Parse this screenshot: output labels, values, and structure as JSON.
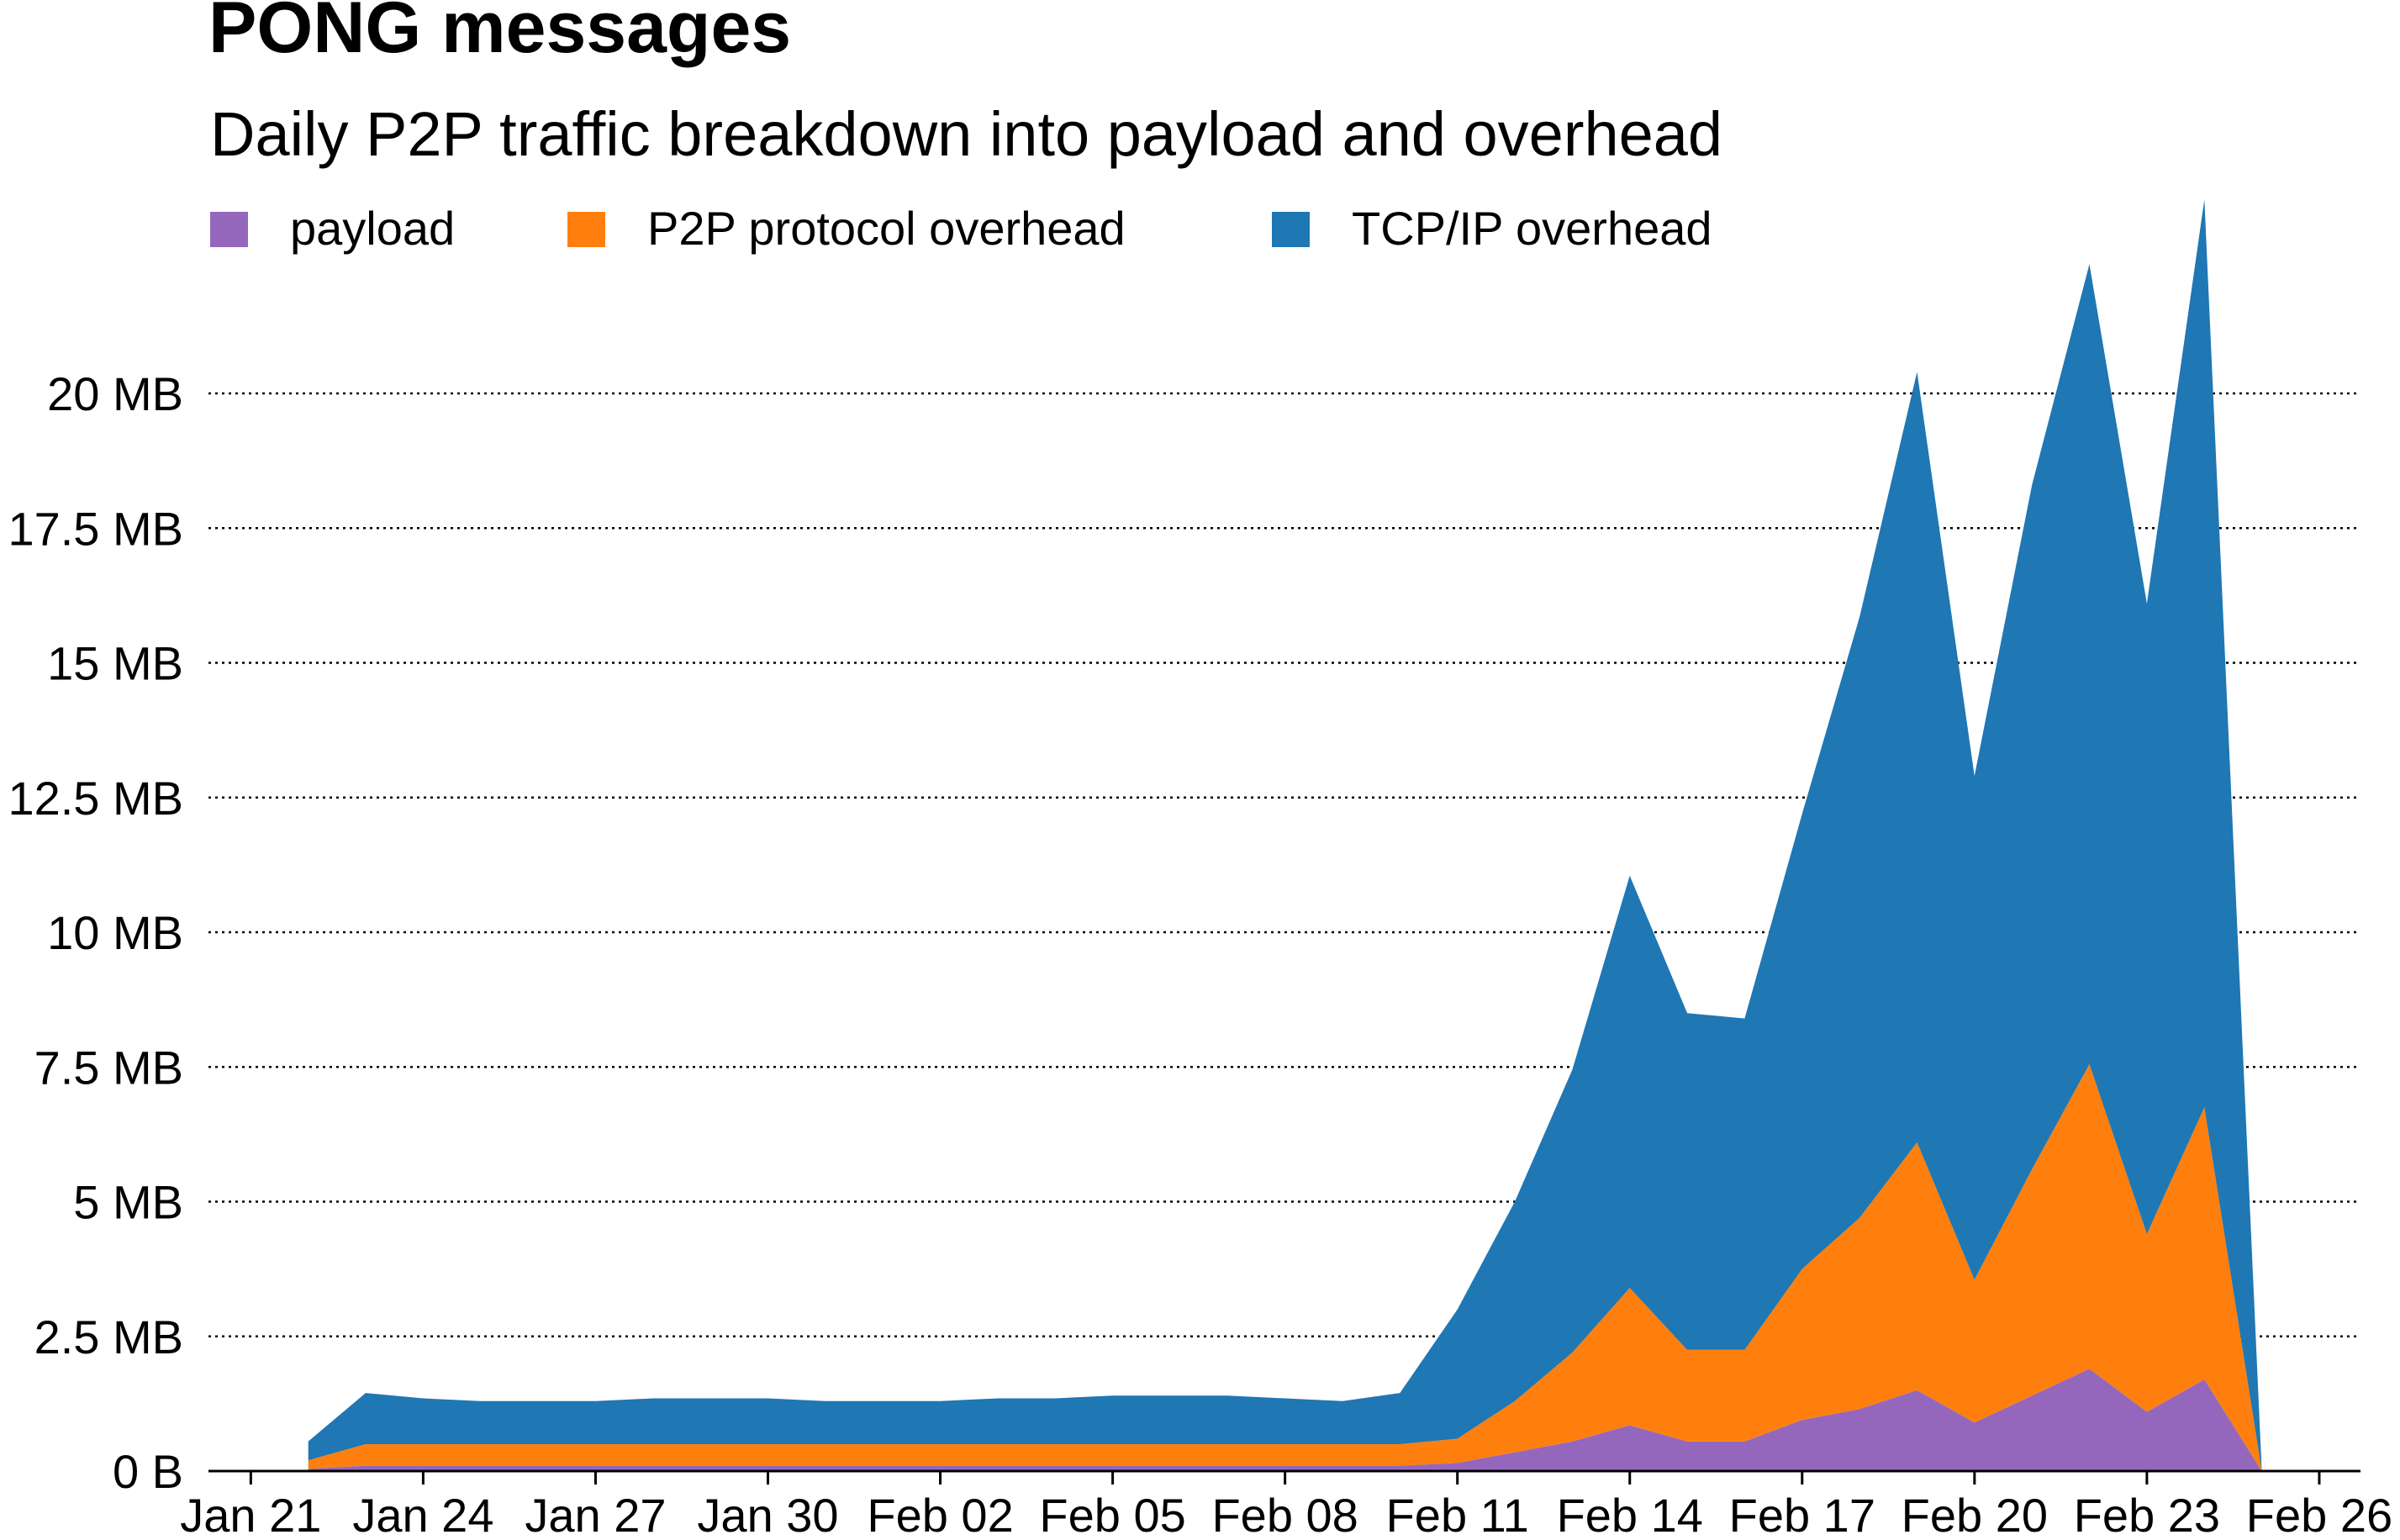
{
  "chart_data": {
    "type": "area",
    "stacked": true,
    "title": "PONG messages",
    "subtitle": "Daily P2P traffic breakdown into payload and overhead",
    "x": [
      "Jan 22",
      "Jan 23",
      "Jan 24",
      "Jan 25",
      "Jan 26",
      "Jan 27",
      "Jan 28",
      "Jan 29",
      "Jan 30",
      "Jan 31",
      "Feb 01",
      "Feb 02",
      "Feb 03",
      "Feb 04",
      "Feb 05",
      "Feb 06",
      "Feb 07",
      "Feb 08",
      "Feb 09",
      "Feb 10",
      "Feb 11",
      "Feb 12",
      "Feb 13",
      "Feb 14",
      "Feb 15",
      "Feb 16",
      "Feb 17",
      "Feb 18",
      "Feb 19",
      "Feb 20",
      "Feb 21",
      "Feb 22",
      "Feb 23",
      "Feb 24",
      "Feb 25"
    ],
    "series": [
      {
        "name": "payload",
        "color": "#9467bd",
        "values": [
          0.04,
          0.1,
          0.1,
          0.1,
          0.1,
          0.1,
          0.1,
          0.1,
          0.1,
          0.1,
          0.1,
          0.1,
          0.1,
          0.1,
          0.1,
          0.1,
          0.1,
          0.1,
          0.1,
          0.1,
          0.15,
          0.35,
          0.55,
          0.85,
          0.55,
          0.55,
          0.95,
          1.15,
          1.5,
          0.9,
          1.4,
          1.9,
          1.1,
          1.7,
          0
        ]
      },
      {
        "name": "P2P protocol overhead",
        "color": "#ff7f0e",
        "values": [
          0.16,
          0.4,
          0.4,
          0.4,
          0.4,
          0.4,
          0.4,
          0.4,
          0.4,
          0.4,
          0.4,
          0.4,
          0.4,
          0.4,
          0.4,
          0.4,
          0.4,
          0.4,
          0.4,
          0.4,
          0.45,
          0.95,
          1.65,
          2.55,
          1.7,
          1.7,
          2.8,
          3.55,
          4.6,
          2.65,
          4.2,
          5.65,
          3.3,
          5.05,
          0
        ]
      },
      {
        "name": "TCP/IP overhead",
        "color": "#1f77b4",
        "values": [
          0.35,
          0.95,
          0.85,
          0.8,
          0.8,
          0.8,
          0.85,
          0.85,
          0.85,
          0.8,
          0.8,
          0.8,
          0.85,
          0.85,
          0.9,
          0.9,
          0.9,
          0.85,
          0.8,
          0.95,
          2.4,
          3.7,
          5.25,
          7.65,
          6.25,
          6.15,
          8.45,
          11.15,
          14.3,
          9.35,
          12.7,
          14.85,
          11.7,
          16.85,
          0
        ]
      }
    ],
    "x_ticks": [
      "Jan 21",
      "Jan 24",
      "Jan 27",
      "Jan 30",
      "Feb 02",
      "Feb 05",
      "Feb 08",
      "Feb 11",
      "Feb 14",
      "Feb 17",
      "Feb 20",
      "Feb 23",
      "Feb 26"
    ],
    "y_ticks": [
      {
        "value": 0,
        "label": "0 B"
      },
      {
        "value": 2.5,
        "label": "2.5 MB"
      },
      {
        "value": 5,
        "label": "5 MB"
      },
      {
        "value": 7.5,
        "label": "7.5 MB"
      },
      {
        "value": 10,
        "label": "10 MB"
      },
      {
        "value": 12.5,
        "label": "12.5 MB"
      },
      {
        "value": 15,
        "label": "15 MB"
      },
      {
        "value": 17.5,
        "label": "17.5 MB"
      },
      {
        "value": 20,
        "label": "20 MB"
      }
    ],
    "ylim": [
      0,
      20
    ],
    "xlim": [
      "Jan 20",
      "Feb 26"
    ],
    "ylabel": "",
    "xlabel": "",
    "grid": "horizontal dotted",
    "legend_position": "top-left"
  }
}
